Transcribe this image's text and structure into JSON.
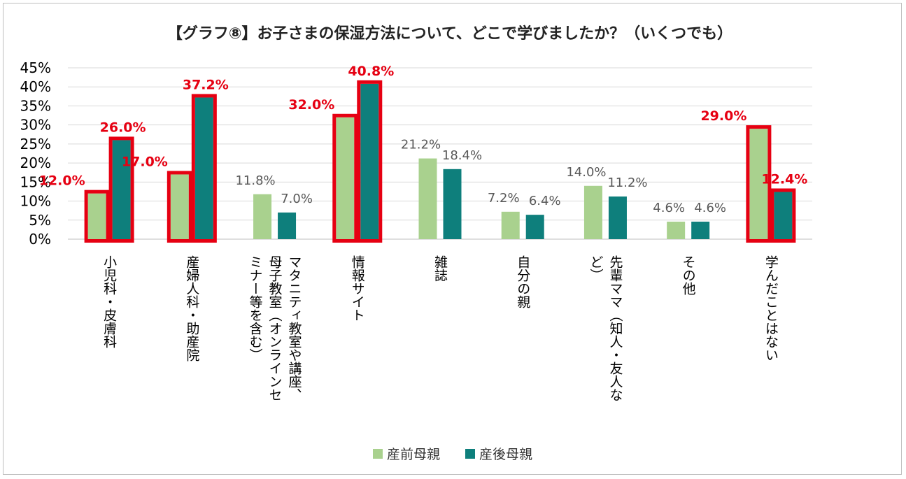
{
  "chart_data": {
    "type": "bar",
    "title": "【グラフ⑧】お子さまの保湿方法について、どこで学びましたか？（いくつでも）",
    "xlabel": "",
    "ylabel": "",
    "ylim": [
      0,
      45
    ],
    "yticks": [
      "0%",
      "5%",
      "10%",
      "15%",
      "20%",
      "25%",
      "30%",
      "35%",
      "40%",
      "45%"
    ],
    "grid": true,
    "legend_position": "bottom",
    "categories": [
      [
        "小児科・皮膚科"
      ],
      [
        "産婦人科・助産院"
      ],
      [
        "マタニティ教室や講座、",
        "母子教室（オンラインセ",
        "ミナー等を含む）"
      ],
      [
        "情報サイト"
      ],
      [
        "雑誌"
      ],
      [
        "自分の親"
      ],
      [
        "先輩ママ（知人・友人な",
        "ど）"
      ],
      [
        "その他"
      ],
      [
        "学んだことはない"
      ]
    ],
    "series": [
      {
        "name": "産前母親",
        "color": "#a9d18e",
        "values": [
          12.0,
          17.0,
          11.8,
          32.0,
          21.2,
          7.2,
          14.0,
          4.6,
          29.0
        ],
        "labels": [
          "12.0%",
          "17.0%",
          "11.8%",
          "32.0%",
          "21.2%",
          "7.2%",
          "14.0%",
          "4.6%",
          "29.0%"
        ],
        "highlighted": [
          true,
          true,
          false,
          true,
          false,
          false,
          false,
          false,
          true
        ]
      },
      {
        "name": "産後母親",
        "color": "#0e7f7c",
        "values": [
          26.0,
          37.2,
          7.0,
          40.8,
          18.4,
          6.4,
          11.2,
          4.6,
          12.4
        ],
        "labels": [
          "26.0%",
          "37.2%",
          "7.0%",
          "40.8%",
          "18.4%",
          "6.4%",
          "11.2%",
          "4.6%",
          "12.4%"
        ],
        "highlighted": [
          true,
          true,
          false,
          true,
          false,
          false,
          false,
          false,
          true
        ]
      }
    ],
    "colors": {
      "highlight_frame": "#e60012",
      "highlight_label": "#e60012",
      "normal_label": "#595959",
      "grid": "#d9d9d9"
    }
  }
}
